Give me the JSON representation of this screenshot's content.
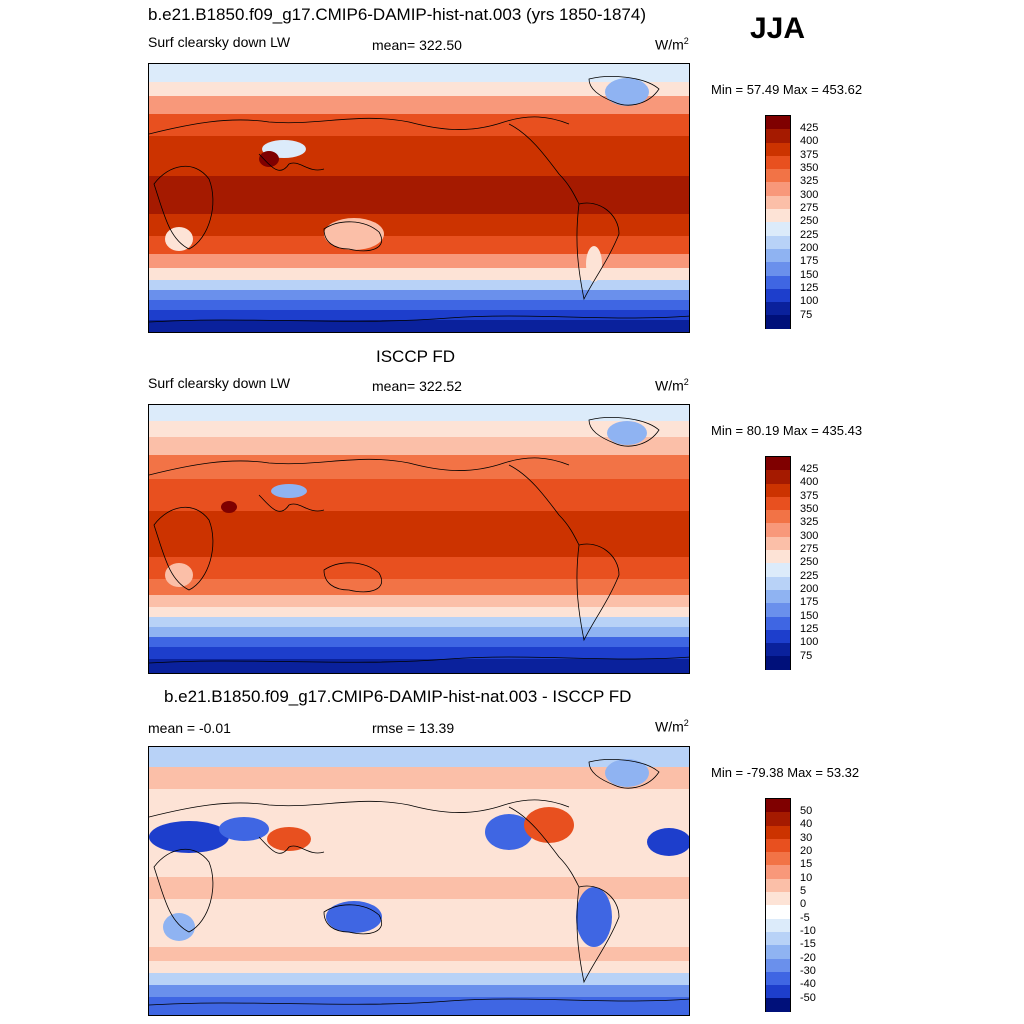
{
  "season": "JJA",
  "units_base": "W/m",
  "units_exp": "2",
  "panels": [
    {
      "title": "b.e21.B1850.f09_g17.CMIP6-DAMIP-hist-nat.003 (yrs 1850-1874)",
      "left_label": "Surf clearsky down LW",
      "center_label": "mean= 322.50",
      "minmax": "Min =  57.49 Max = 453.62",
      "levels": [
        "425",
        "400",
        "375",
        "350",
        "325",
        "300",
        "275",
        "250",
        "225",
        "200",
        "175",
        "150",
        "125",
        "100",
        "75"
      ]
    },
    {
      "title": "ISCCP FD",
      "left_label": "Surf clearsky down LW",
      "center_label": "mean= 322.52",
      "minmax": "Min =  80.19 Max = 435.43",
      "levels": [
        "425",
        "400",
        "375",
        "350",
        "325",
        "300",
        "275",
        "250",
        "225",
        "200",
        "175",
        "150",
        "125",
        "100",
        "75"
      ]
    },
    {
      "title": "b.e21.B1850.f09_g17.CMIP6-DAMIP-hist-nat.003 - ISCCP FD",
      "left_label": "mean =  -0.01",
      "center_label": "rmse =  13.39",
      "minmax": "Min = -79.38 Max =  53.32",
      "levels": [
        "50",
        "40",
        "30",
        "20",
        "15",
        "10",
        "5",
        "0",
        "-5",
        "-10",
        "-15",
        "-20",
        "-30",
        "-40",
        "-50"
      ]
    }
  ],
  "colors": {
    "abs_scale": [
      "#7f0000",
      "#a51a00",
      "#cc3300",
      "#e8501f",
      "#f27346",
      "#f8987a",
      "#fbbfa8",
      "#fde3d6",
      "#dcebfa",
      "#b8d2f7",
      "#8fb3f2",
      "#6a90ec",
      "#3f66e3",
      "#1d3ecc",
      "#0a219c",
      "#00107a"
    ],
    "diff_scale": [
      "#7f0000",
      "#a51a00",
      "#cc3300",
      "#e8501f",
      "#f27346",
      "#f8987a",
      "#fbbfa8",
      "#fde3d6",
      "#ffffff",
      "#dcebfa",
      "#b8d2f7",
      "#8fb3f2",
      "#6a90ec",
      "#3f66e3",
      "#1d3ecc",
      "#00107a"
    ]
  }
}
